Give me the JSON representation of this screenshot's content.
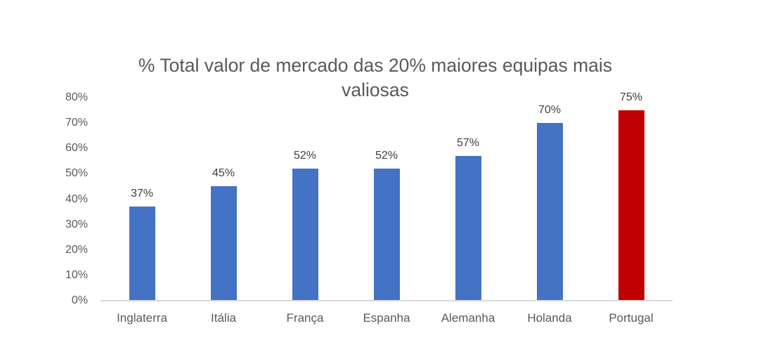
{
  "chart_data": {
    "type": "bar",
    "title": "% Total valor de mercado das 20% maiores equipas mais valiosas",
    "title_lines": [
      "% Total valor de mercado das 20% maiores equipas mais",
      "valiosas"
    ],
    "categories": [
      "Inglaterra",
      "Itália",
      "França",
      "Espanha",
      "Alemanha",
      "Holanda",
      "Portugal"
    ],
    "values": [
      37,
      45,
      52,
      52,
      57,
      70,
      75
    ],
    "data_labels": [
      "37%",
      "45%",
      "52%",
      "52%",
      "57%",
      "70%",
      "75%"
    ],
    "bar_colors": [
      "#4472C4",
      "#4472C4",
      "#4472C4",
      "#4472C4",
      "#4472C4",
      "#4472C4",
      "#C00000"
    ],
    "y_tick_labels": [
      "0%",
      "10%",
      "20%",
      "30%",
      "40%",
      "50%",
      "60%",
      "70%",
      "80%"
    ],
    "y_tick_values": [
      0,
      10,
      20,
      30,
      40,
      50,
      60,
      70,
      80
    ],
    "ylim": [
      0,
      80
    ],
    "xlabel": "",
    "ylabel": "",
    "grid": false,
    "legend": false,
    "colors": {
      "blue_bar": "#4472C4",
      "red_bar": "#C00000",
      "axis_line": "#D9D9D9",
      "axis_label": "#595959",
      "data_label": "#404040",
      "title": "#595959",
      "background": "#FFFFFF"
    }
  }
}
